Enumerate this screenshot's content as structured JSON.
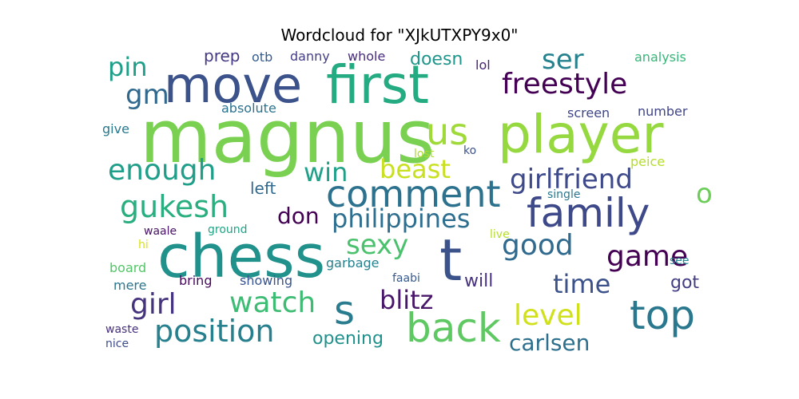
{
  "title": "Wordcloud for \"XJkUTXPY9x0\"",
  "words": [
    {
      "text": "magnus",
      "color": "#7ad151"
    },
    {
      "text": "player",
      "color": "#95d840"
    },
    {
      "text": "chess",
      "color": "#21918c"
    },
    {
      "text": "move",
      "color": "#3b528b"
    },
    {
      "text": "first",
      "color": "#25ab82"
    },
    {
      "text": "t",
      "color": "#3b528b"
    },
    {
      "text": "family",
      "color": "#3e4989"
    },
    {
      "text": "comment",
      "color": "#2c728e"
    },
    {
      "text": "back",
      "color": "#5ec962"
    },
    {
      "text": "top",
      "color": "#2a788e"
    },
    {
      "text": "us",
      "color": "#a0da39"
    },
    {
      "text": "s",
      "color": "#287c8e"
    },
    {
      "text": "position",
      "color": "#27808e"
    },
    {
      "text": "freestyle",
      "color": "#440154"
    },
    {
      "text": "philippines",
      "color": "#2e6e8e"
    },
    {
      "text": "girlfriend",
      "color": "#3e4a89"
    },
    {
      "text": "watch",
      "color": "#3dbc74"
    },
    {
      "text": "girl",
      "color": "#46337e"
    },
    {
      "text": "gukesh",
      "color": "#29af7f"
    },
    {
      "text": "enough",
      "color": "#1f9e89"
    },
    {
      "text": "game",
      "color": "#440154"
    },
    {
      "text": "good",
      "color": "#306a8e"
    },
    {
      "text": "beast",
      "color": "#c8e020"
    },
    {
      "text": "win",
      "color": "#1fa088"
    },
    {
      "text": "sexy",
      "color": "#4ac16d"
    },
    {
      "text": "blitz",
      "color": "#481769"
    },
    {
      "text": "level",
      "color": "#d0e11c"
    },
    {
      "text": "time",
      "color": "#3b528b"
    },
    {
      "text": "carlsen",
      "color": "#2d708e"
    },
    {
      "text": "don",
      "color": "#440154"
    },
    {
      "text": "gm",
      "color": "#31688e"
    },
    {
      "text": "ser",
      "color": "#26828e"
    },
    {
      "text": "pin",
      "color": "#1f9e89"
    },
    {
      "text": "o",
      "color": "#6ccd5a"
    },
    {
      "text": "doesn",
      "color": "#1f968b"
    },
    {
      "text": "opening",
      "color": "#21918c"
    },
    {
      "text": "will",
      "color": "#46327e"
    },
    {
      "text": "got",
      "color": "#433e85"
    },
    {
      "text": "left",
      "color": "#31688e"
    },
    {
      "text": "prep",
      "color": "#443983"
    },
    {
      "text": "danny",
      "color": "#433e85"
    },
    {
      "text": "whole",
      "color": "#472d7b"
    },
    {
      "text": "otb",
      "color": "#365c8d"
    },
    {
      "text": "lol",
      "color": "#482475"
    },
    {
      "text": "analysis",
      "color": "#35b779"
    },
    {
      "text": "absolute",
      "color": "#2c738e"
    },
    {
      "text": "screen",
      "color": "#3f4788"
    },
    {
      "text": "number",
      "color": "#404688"
    },
    {
      "text": "give",
      "color": "#2a788e"
    },
    {
      "text": "lost",
      "color": "#addc30"
    },
    {
      "text": "ko",
      "color": "#3b528b"
    },
    {
      "text": "peice",
      "color": "#b5de2b"
    },
    {
      "text": "single",
      "color": "#2a788e"
    },
    {
      "text": "waale",
      "color": "#471164"
    },
    {
      "text": "ground",
      "color": "#20a486"
    },
    {
      "text": "live",
      "color": "#b5de2b"
    },
    {
      "text": "hi",
      "color": "#d8e219"
    },
    {
      "text": "see",
      "color": "#24868e"
    },
    {
      "text": "board",
      "color": "#54c568"
    },
    {
      "text": "garbage",
      "color": "#26818e"
    },
    {
      "text": "mere",
      "color": "#2a778e"
    },
    {
      "text": "bring",
      "color": "#46085c"
    },
    {
      "text": "showing",
      "color": "#3a548c"
    },
    {
      "text": "faabi",
      "color": "#375a8c"
    },
    {
      "text": "waste",
      "color": "#472f7d"
    },
    {
      "text": "nice",
      "color": "#3e4c8a"
    }
  ]
}
